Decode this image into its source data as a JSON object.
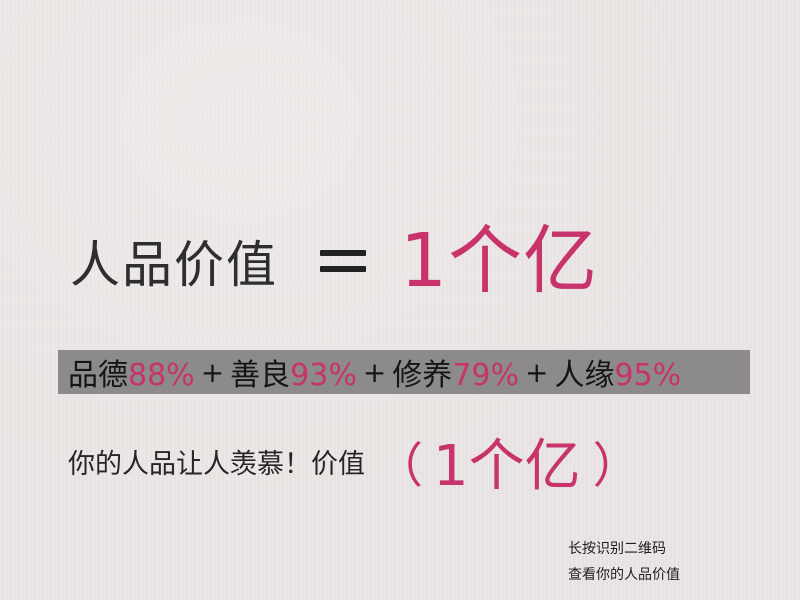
{
  "headline": {
    "label": "人品价值",
    "equals_icon": "equals-sign",
    "value": "1个亿"
  },
  "stats": [
    {
      "label": "品德",
      "value": "88%"
    },
    {
      "label": "善良",
      "value": "93%"
    },
    {
      "label": "修养",
      "value": "79%"
    },
    {
      "label": "人缘",
      "value": "95%"
    }
  ],
  "stats_separator": "+",
  "tagline": {
    "text": "你的人品让人羡慕！价值",
    "open_paren": "（",
    "value": "1个亿",
    "close_paren": "）"
  },
  "qr_hint": {
    "line1": "长按识别二维码",
    "line2": "查看你的人品价值"
  },
  "colors": {
    "accent": "#c7336a",
    "text": "#2b2b2b",
    "band": "#8c8a8b",
    "background": "#ece7e6"
  }
}
